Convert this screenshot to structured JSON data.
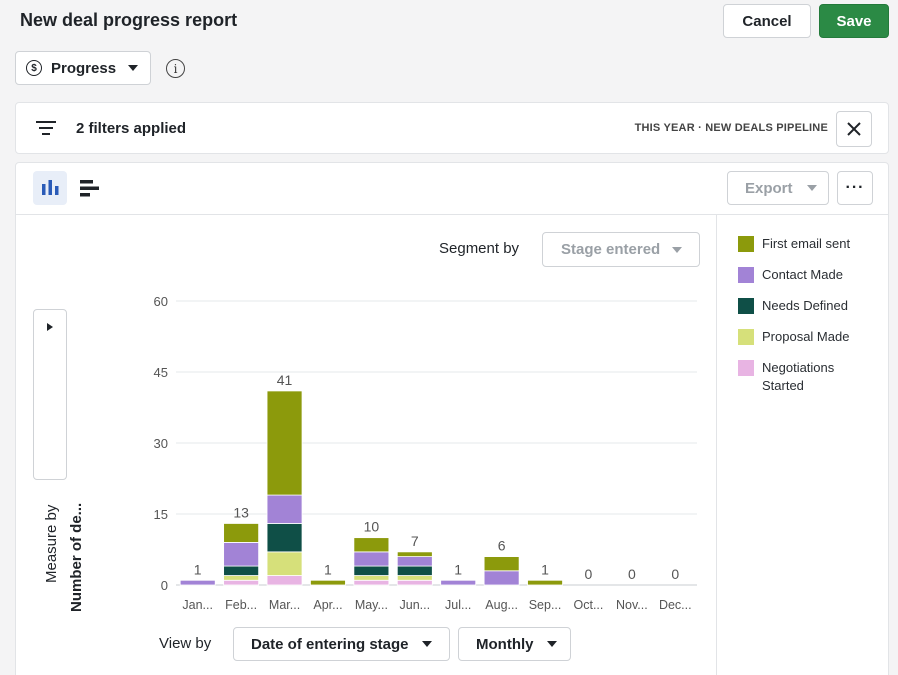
{
  "header": {
    "title": "New deal progress report",
    "cancel_label": "Cancel",
    "save_label": "Save"
  },
  "report_type": {
    "icon": "dollar-circle-icon",
    "label": "Progress"
  },
  "filters": {
    "text": "2 filters applied",
    "scope": "THIS YEAR · NEW DEALS PIPELINE"
  },
  "toolbar": {
    "export_label": "Export",
    "more_label": "···"
  },
  "segment": {
    "label": "Segment by",
    "value": "Stage entered"
  },
  "measure": {
    "label": "Measure by",
    "value": "Number of de..."
  },
  "view_by": {
    "label": "View by",
    "field": "Date of entering stage",
    "interval": "Monthly"
  },
  "colors": {
    "accent": "#2b8a45",
    "grid": "#e6e8eb"
  },
  "chart_data": {
    "type": "bar",
    "stacked": true,
    "categories": [
      "Jan...",
      "Feb...",
      "Mar...",
      "Apr...",
      "May...",
      "Jun...",
      "Jul...",
      "Aug...",
      "Sep...",
      "Oct...",
      "Nov...",
      "Dec..."
    ],
    "series": [
      {
        "name": "Negotiations Started",
        "color": "#e8b4e3",
        "values": [
          0,
          1,
          2,
          0,
          1,
          1,
          0,
          0,
          0,
          0,
          0,
          0
        ]
      },
      {
        "name": "Proposal Made",
        "color": "#d6e07a",
        "values": [
          0,
          1,
          5,
          0,
          1,
          1,
          0,
          0,
          0,
          0,
          0,
          0
        ]
      },
      {
        "name": "Needs Defined",
        "color": "#0f4f47",
        "values": [
          0,
          2,
          6,
          0,
          2,
          2,
          0,
          0,
          0,
          0,
          0,
          0
        ]
      },
      {
        "name": "Contact Made",
        "color": "#a283d6",
        "values": [
          1,
          5,
          6,
          0,
          3,
          2,
          1,
          3,
          0,
          0,
          0,
          0
        ]
      },
      {
        "name": "First email sent",
        "color": "#8c9a0c",
        "values": [
          0,
          4,
          22,
          1,
          3,
          1,
          0,
          3,
          1,
          0,
          0,
          0
        ]
      }
    ],
    "totals": [
      1,
      13,
      41,
      1,
      10,
      7,
      1,
      6,
      1,
      0,
      0,
      0
    ],
    "legend_order": [
      "First email sent",
      "Contact Made",
      "Needs Defined",
      "Proposal Made",
      "Negotiations Started"
    ],
    "legend_position": "right",
    "yticks": [
      0,
      15,
      30,
      45,
      60
    ],
    "ylim": [
      0,
      60
    ],
    "grid": true
  }
}
